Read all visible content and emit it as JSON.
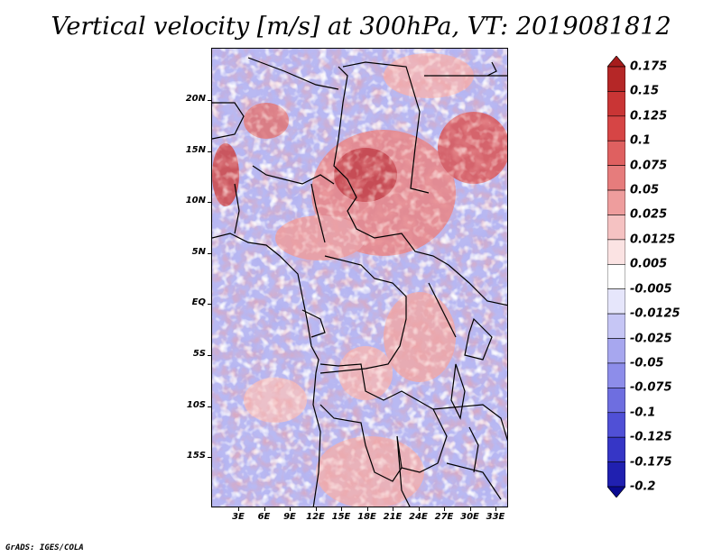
{
  "title": "Vertical velocity [m/s] at 300hPa, VT: 2019081812",
  "credit": "GrADS: IGES/COLA",
  "lat_labels": [
    "20N",
    "15N",
    "10N",
    "5N",
    "EQ",
    "5S",
    "10S",
    "15S"
  ],
  "lon_labels": [
    "3E",
    "6E",
    "9E",
    "12E",
    "15E",
    "18E",
    "21E",
    "24E",
    "27E",
    "30E",
    "33E"
  ],
  "colorbar": {
    "labels": [
      "0.175",
      "0.15",
      "0.125",
      "0.1",
      "0.075",
      "0.05",
      "0.025",
      "0.0125",
      "0.005",
      "-0.005",
      "-0.0125",
      "-0.025",
      "-0.05",
      "-0.075",
      "-0.1",
      "-0.125",
      "-0.175",
      "-0.2"
    ],
    "colors": [
      "#a61c1c",
      "#b52727",
      "#c93535",
      "#d64545",
      "#df6060",
      "#e67c7c",
      "#ee9d9d",
      "#f5c2c2",
      "#fbe3e3",
      "#ffffff",
      "#e6e6fb",
      "#c6c6f5",
      "#a7a7ef",
      "#8d8dea",
      "#6e6ee0",
      "#5050d6",
      "#3636c6",
      "#2020b0",
      "#0a0a90"
    ]
  }
}
